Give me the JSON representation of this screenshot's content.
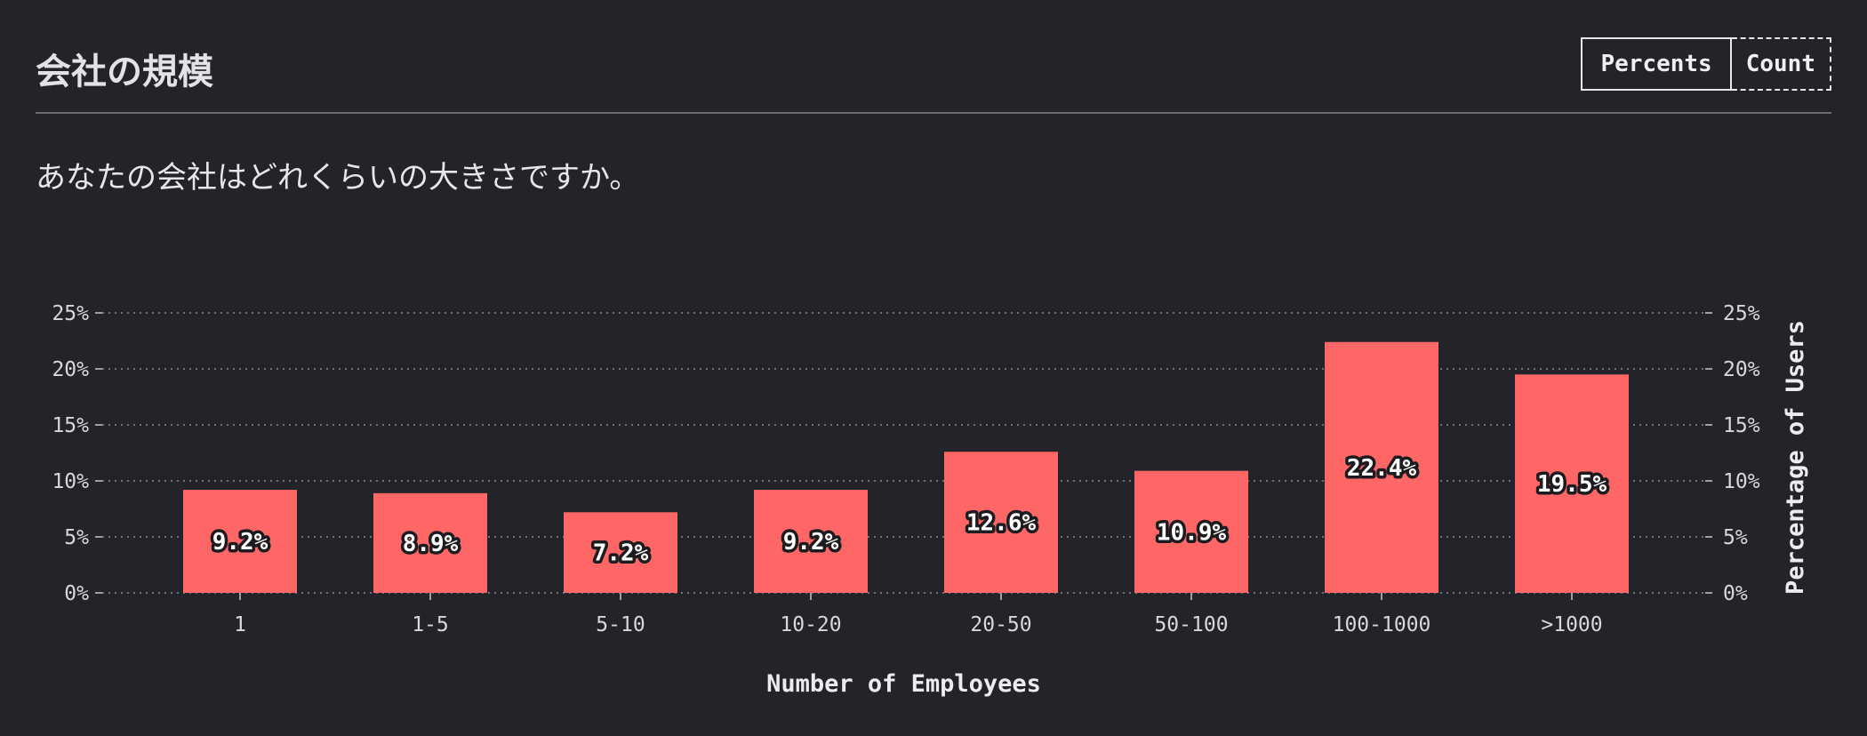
{
  "header": {
    "title": "会社の規模",
    "toggle": {
      "percents_label": "Percents",
      "count_label": "Count",
      "selected": "Percents"
    }
  },
  "question": "あなたの会社はどれくらいの大きさですか。",
  "colors": {
    "bar": "#ff6767",
    "background": "#232429",
    "grid": "#8a8b90"
  },
  "chart_data": {
    "type": "bar",
    "categories": [
      "1",
      "1-5",
      "5-10",
      "10-20",
      "20-50",
      "50-100",
      "100-1000",
      ">1000"
    ],
    "values": [
      9.2,
      8.9,
      7.2,
      9.2,
      12.6,
      10.9,
      22.4,
      19.5
    ],
    "value_labels": [
      "9.2%",
      "8.9%",
      "7.2%",
      "9.2%",
      "12.6%",
      "10.9%",
      "22.4%",
      "19.5%"
    ],
    "xlabel": "Number of Employees",
    "ylabel": "Percentage of Users",
    "ylim": [
      0,
      25
    ],
    "yticks": [
      0,
      5,
      10,
      15,
      20,
      25
    ],
    "ytick_labels": [
      "0%",
      "5%",
      "10%",
      "15%",
      "20%",
      "25%"
    ],
    "grid": true,
    "grid_style": "dotted"
  }
}
